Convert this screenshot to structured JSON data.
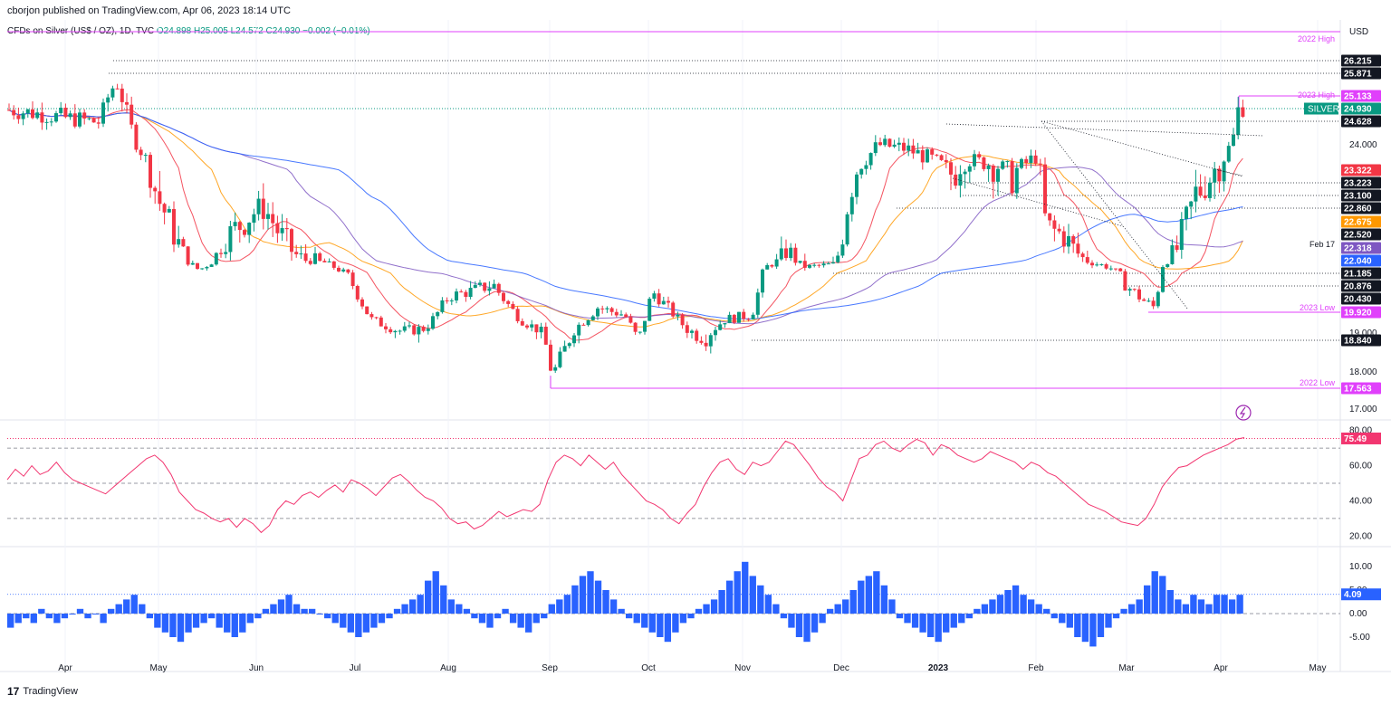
{
  "header": {
    "published": "cborjon published on TradingView.com, Apr 06, 2023 18:14 UTC"
  },
  "symbol": {
    "name": "CFDs on Silver (US$ / OZ), 1D, TVC",
    "open": "O24.898",
    "high": "H25.005",
    "low": "L24.572",
    "close": "C24.930",
    "change": "−0.002 (−0.01%)"
  },
  "footer": {
    "brand": "TradingView"
  },
  "chart_data": {
    "type": "candlestick",
    "instrument": "CFDs on Silver (US$ / OZ)",
    "timeframe": "1D",
    "currency": "USD",
    "price_axis_ticks": [
      "24.000",
      "19.000",
      "18.000",
      "17.000"
    ],
    "x_axis_labels": [
      "Apr",
      "May",
      "Jun",
      "Jul",
      "Aug",
      "Sep",
      "Oct",
      "Nov",
      "Dec",
      "2023",
      "Feb",
      "Mar",
      "Apr",
      "May"
    ],
    "price_labels": [
      {
        "value": "26.215",
        "color": "#131722",
        "text_color": "#ffffff"
      },
      {
        "value": "25.871",
        "color": "#131722",
        "text_color": "#ffffff"
      },
      {
        "value": "25.133",
        "color": "#e040fb",
        "text_color": "#ffffff",
        "note": "2023 High"
      },
      {
        "value": "24.930",
        "color": "#089981",
        "text_color": "#ffffff",
        "tag": "SILVER"
      },
      {
        "value": "24.628",
        "color": "#131722",
        "text_color": "#ffffff"
      },
      {
        "value": "23.322",
        "color": "#f23645",
        "text_color": "#ffffff"
      },
      {
        "value": "23.223",
        "color": "#131722",
        "text_color": "#ffffff"
      },
      {
        "value": "23.100",
        "color": "#131722",
        "text_color": "#ffffff"
      },
      {
        "value": "22.860",
        "color": "#131722",
        "text_color": "#ffffff"
      },
      {
        "value": "22.675",
        "color": "#ff9800",
        "text_color": "#ffffff"
      },
      {
        "value": "22.520",
        "color": "#131722",
        "text_color": "#ffffff"
      },
      {
        "value": "22.318",
        "color": "#7e57c2",
        "text_color": "#ffffff",
        "note": "Feb 17"
      },
      {
        "value": "22.040",
        "color": "#2962ff",
        "text_color": "#ffffff"
      },
      {
        "value": "21.185",
        "color": "#131722",
        "text_color": "#ffffff"
      },
      {
        "value": "20.876",
        "color": "#131722",
        "text_color": "#ffffff"
      },
      {
        "value": "20.430",
        "color": "#131722",
        "text_color": "#ffffff"
      },
      {
        "value": "19.920",
        "color": "#e040fb",
        "text_color": "#ffffff",
        "note": "2023 Low"
      },
      {
        "value": "18.840",
        "color": "#131722",
        "text_color": "#ffffff"
      },
      {
        "value": "17.563",
        "color": "#e040fb",
        "text_color": "#ffffff",
        "note": "2022 Low"
      }
    ],
    "annotations": [
      "2022 High",
      "2023 High",
      "2023 Low",
      "2022 Low",
      "Feb 17"
    ],
    "moving_averages": [
      {
        "color": "#f23645",
        "value": "23.322"
      },
      {
        "color": "#ff9800",
        "value": "22.675"
      },
      {
        "color": "#7e57c2",
        "value": "22.318"
      },
      {
        "color": "#2962ff",
        "value": "22.040"
      }
    ],
    "rsi": {
      "ticks": [
        "80.00",
        "60.00",
        "40.00",
        "20.00"
      ],
      "value": "75.49",
      "levels": [
        70,
        50,
        30
      ],
      "series": [
        52,
        58,
        54,
        60,
        55,
        57,
        62,
        56,
        52,
        50,
        48,
        46,
        44,
        48,
        52,
        56,
        60,
        64,
        66,
        62,
        55,
        45,
        40,
        35,
        33,
        30,
        28,
        30,
        25,
        30,
        27,
        22,
        26,
        35,
        40,
        38,
        43,
        45,
        42,
        46,
        49,
        45,
        52,
        50,
        47,
        43,
        48,
        53,
        55,
        51,
        46,
        42,
        40,
        36,
        30,
        27,
        28,
        24,
        26,
        30,
        34,
        31,
        33,
        35,
        34,
        38,
        52,
        62,
        66,
        64,
        60,
        66,
        62,
        58,
        62,
        55,
        50,
        45,
        40,
        38,
        35,
        30,
        27,
        33,
        38,
        48,
        56,
        62,
        64,
        58,
        55,
        62,
        60,
        62,
        68,
        74,
        72,
        66,
        60,
        53,
        48,
        45,
        40,
        52,
        64,
        66,
        72,
        74,
        70,
        68,
        72,
        75,
        73,
        66,
        72,
        70,
        66,
        64,
        62,
        64,
        68,
        66,
        64,
        62,
        58,
        62,
        60,
        56,
        54,
        50,
        46,
        42,
        38,
        36,
        34,
        31,
        28,
        27,
        26,
        30,
        38,
        48,
        54,
        59,
        60,
        63,
        66,
        68,
        70,
        72,
        75,
        76
      ]
    },
    "oscillator": {
      "ticks": [
        "10.00",
        "5.00",
        "0.00",
        "-5.00"
      ],
      "value": "4.09",
      "series": [
        -3,
        -2,
        -1,
        -2,
        1,
        -1,
        -2,
        -1,
        0,
        1,
        -1,
        0,
        -2,
        1,
        2,
        3,
        4,
        2,
        -1,
        -3,
        -4,
        -5,
        -6,
        -4,
        -3,
        -2,
        -1,
        -3,
        -4,
        -5,
        -4,
        -2,
        -1,
        1,
        2,
        3,
        4,
        2,
        1,
        1,
        0,
        -1,
        -2,
        -3,
        -4,
        -5,
        -4,
        -3,
        -2,
        -1,
        1,
        2,
        3,
        4,
        7,
        9,
        6,
        3,
        2,
        1,
        -1,
        -2,
        -3,
        -1,
        1,
        -2,
        -3,
        -4,
        -2,
        -1,
        2,
        3,
        4,
        6,
        8,
        9,
        7,
        5,
        3,
        1,
        -1,
        -2,
        -3,
        -4,
        -5,
        -6,
        -4,
        -2,
        -1,
        1,
        2,
        3,
        5,
        7,
        9,
        11,
        8,
        6,
        4,
        2,
        -1,
        -3,
        -5,
        -6,
        -4,
        -2,
        1,
        2,
        3,
        5,
        7,
        8,
        9,
        6,
        3,
        -1,
        -2,
        -3,
        -4,
        -5,
        -6,
        -4,
        -3,
        -2,
        -1,
        1,
        2,
        3,
        4,
        5,
        6,
        4,
        3,
        2,
        1,
        -1,
        -2,
        -3,
        -5,
        -6,
        -7,
        -5,
        -3,
        -1,
        1,
        2,
        3,
        6,
        9,
        8,
        5,
        3,
        2,
        4,
        3,
        2,
        4,
        4,
        3,
        4
      ]
    }
  }
}
